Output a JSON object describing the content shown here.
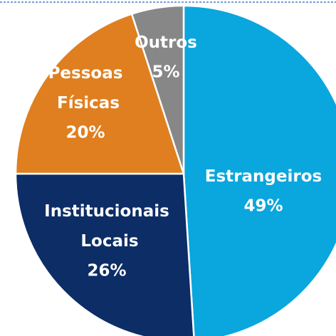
{
  "chart_data": {
    "type": "pie",
    "categories": [
      "Estrangeiros",
      "Institucionais Locais",
      "Pessoas Físicas",
      "Outros"
    ],
    "values": [
      49,
      26,
      20,
      5
    ],
    "value_labels": [
      "49%",
      "26%",
      "20%",
      "5%"
    ],
    "colors": [
      "#0aa6de",
      "#0c2d66",
      "#e07f1f",
      "#878787"
    ]
  }
}
